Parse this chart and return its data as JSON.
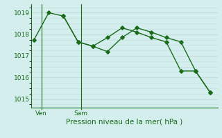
{
  "series1_x": [
    0,
    1,
    2,
    3,
    4,
    5,
    6,
    7,
    8,
    9,
    10,
    11,
    12
  ],
  "series1_y": [
    1017.75,
    1019.0,
    1018.85,
    1017.65,
    1017.45,
    1017.2,
    1017.85,
    1018.3,
    1018.1,
    1017.85,
    1017.65,
    1016.3,
    1015.3
  ],
  "series2_x": [
    2,
    3,
    4,
    5,
    6,
    7,
    8,
    9,
    10,
    11,
    12
  ],
  "series2_y": [
    1018.85,
    1017.65,
    1017.45,
    1017.85,
    1018.3,
    1018.1,
    1017.85,
    1017.65,
    1016.3,
    1016.3,
    1015.3
  ],
  "line_color": "#1a6b1a",
  "bg_color": "#d4eeee",
  "grid_color": "#c0d8d8",
  "ylim": [
    1014.6,
    1019.4
  ],
  "yticks": [
    1015,
    1016,
    1017,
    1018,
    1019
  ],
  "xlim": [
    -0.2,
    12.5
  ],
  "ven_x": 0.5,
  "sam_x": 3.2,
  "ven_label": "Ven",
  "sam_label": "Sam",
  "xlabel": "Pression niveau de la mer( hPa )",
  "tick_fontsize": 6.5,
  "xlabel_fontsize": 7.5,
  "marker": "D",
  "markersize": 2.8,
  "linewidth": 1.0
}
